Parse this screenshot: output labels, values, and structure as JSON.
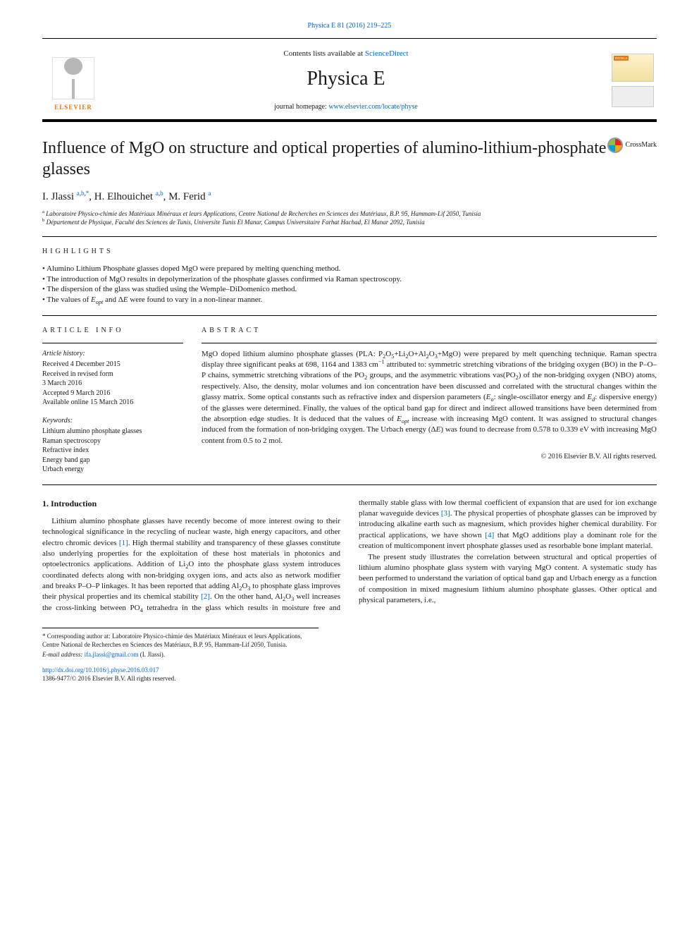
{
  "citation": {
    "journal": "Physica E",
    "vol_pages": "81 (2016) 219–225",
    "url_text": "Physica E 81 (2016) 219–225"
  },
  "header": {
    "contents_pre": "Contents lists available at ",
    "contents_link": "ScienceDirect",
    "journal_name": "Physica E",
    "homepage_pre": "journal homepage: ",
    "homepage_url": "www.elsevier.com/locate/physe",
    "publisher_logo_text": "ELSEVIER",
    "cover_label": "PHYSICA"
  },
  "crossmark_label": "CrossMark",
  "title": "Influence of MgO on structure and optical properties of alumino-lithium-phosphate glasses",
  "authors_html": "I. Jlassi <sup><a>a</a>,<a>b</a>,<a>*</a></sup>, H. Elhouichet <sup><a>a</a>,<a>b</a></sup>, M. Ferid <sup><a>a</a></sup>",
  "affiliations": {
    "a": "Laboratoire Physico-chimie des Matériaux Minéraux et leurs Applications, Centre National de Recherches en Sciences des Matériaux, B.P. 95, Hammam-Lif 2050, Tunisia",
    "b": "Département de Physique, Faculté des Sciences de Tunis, Universite Tunis El Manar, Campus Universitaire Farhat Hachad, El Manar 2092, Tunisia"
  },
  "highlights_label": "HIGHLIGHTS",
  "highlights": [
    "Alumino Lithium Phosphate glasses doped MgO were prepared by melting quenching method.",
    "The introduction of MgO results in depolymerization of the phosphate glasses confirmed via Raman spectroscopy.",
    "The dispersion of the glass was studied using the Wemple–DiDomenico method.",
    "The values of E_opt and ΔE were found to vary in a non-linear manner."
  ],
  "article_info_label": "ARTICLE INFO",
  "abstract_label": "ABSTRACT",
  "history_head": "Article history:",
  "history": [
    "Received 4 December 2015",
    "Received in revised form",
    "3 March 2016",
    "Accepted 9 March 2016",
    "Available online 15 March 2016"
  ],
  "keywords_head": "Keywords:",
  "keywords": [
    "Lithium alumino phosphate glasses",
    "Raman spectroscopy",
    "Refractive index",
    "Energy band gap",
    "Urbach energy"
  ],
  "abstract": "MgO doped lithium alumino phosphate glasses (PLA: P2O5+Li2O+Al2O3+MgO) were prepared by melt quenching technique. Raman spectra display three significant peaks at 698, 1164 and 1383 cm−1 attributed to: symmetric stretching vibrations of the bridging oxygen (BO) in the P–O–P chains, symmetric stretching vibrations of the PO2 groups, and the asymmetric vibrations vas(PO2) of the non-bridging oxygen (NBO) atoms, respectively. Also, the density, molar volumes and ion concentration have been discussed and correlated with the structural changes within the glassy matrix. Some optical constants such as refractive index and dispersion parameters (Eo: single-oscillator energy and Ed: dispersive energy) of the glasses were determined. Finally, the values of the optical band gap for direct and indirect allowed transitions have been determined from the absorption edge studies. It is deduced that the values of Eopt increase with increasing MgO content. It was assigned to structural changes induced from the formation of non-bridging oxygen. The Urbach energy (ΔE) was found to decrease from 0.578 to 0.339 eV with increasing MgO content from 0.5 to 2 mol.",
  "copyright": "© 2016 Elsevier B.V. All rights reserved.",
  "intro_heading": "1.  Introduction",
  "intro_p1": "Lithium alumino phosphate glasses have recently become of more interest owing to their technological significance in the recycling of nuclear waste, high energy capacitors, and other electro chromic devices [1]. High thermal stability and transparency of these glasses constitute also underlying properties for the exploitation of these host materials in photonics and optoelectronics applications. Addition of Li2O into the phosphate glass system introduces coordinated defects along with non-bridging oxygen ions, and acts also as network modifier and breaks P–O–P linkages. It has been reported that adding Al2O3 to phosphate glass improves their physical properties and its chemical stability [2]. On the other hand, Al2O3 well increases the cross-linking between PO4 tetrahedra in the glass which results in moisture free and thermally stable glass with low thermal coefficient of expansion that are used for ion exchange planar waveguide devices [3]. The physical properties of phosphate glasses can be improved by introducing alkaline earth such as magnesium, which provides higher chemical durability. For practical applications, we have shown [4] that MgO additions play a dominant role for the creation of multicomponent invert phosphate glasses used as resorbable bone implant material.",
  "intro_p2": "The present study illustrates the correlation between structural and optical properties of lithium alumino phosphate glass system with varying MgO content. A systematic study has been performed to understand the variation of optical band gap and Urbach energy as a function of composition in mixed magnesium lithium alumino phosphate glasses. Other optical and physical parameters, i.e.,",
  "footnote_corresponding": "* Corresponding author at: Laboratoire Physico-chimie des Matériaux Minéraux et leurs Applications, Centre National de Recherches en Sciences des Matériaux, B.P. 95, Hammam-Lif 2050, Tunisia.",
  "footnote_email_label": "E-mail address: ",
  "footnote_email": "ifa.jlassi@gmail.com",
  "footnote_email_who": " (I. Jlassi).",
  "doi_url": "http://dx.doi.org/10.1016/j.physe.2016.03.017",
  "doi_copyright": "1386-9477/© 2016 Elsevier B.V. All rights reserved.",
  "raman_peaks_cm1": [
    698,
    1164,
    1383
  ],
  "urbach_energy_eV": {
    "from": 0.578,
    "to": 0.339
  },
  "mgo_mol_range": {
    "from": 0.5,
    "to": 2
  },
  "refs_in_text": [
    "[1]",
    "[2]",
    "[3]",
    "[4]"
  ],
  "colors": {
    "link": "#0066cc",
    "elsevier_orange": "#e67817",
    "text": "#1a1a1a",
    "background": "#ffffff"
  },
  "typography": {
    "body_fontsize_pt": 9,
    "title_fontsize_pt": 19,
    "journal_name_fontsize_pt": 22,
    "authors_fontsize_pt": 12
  }
}
